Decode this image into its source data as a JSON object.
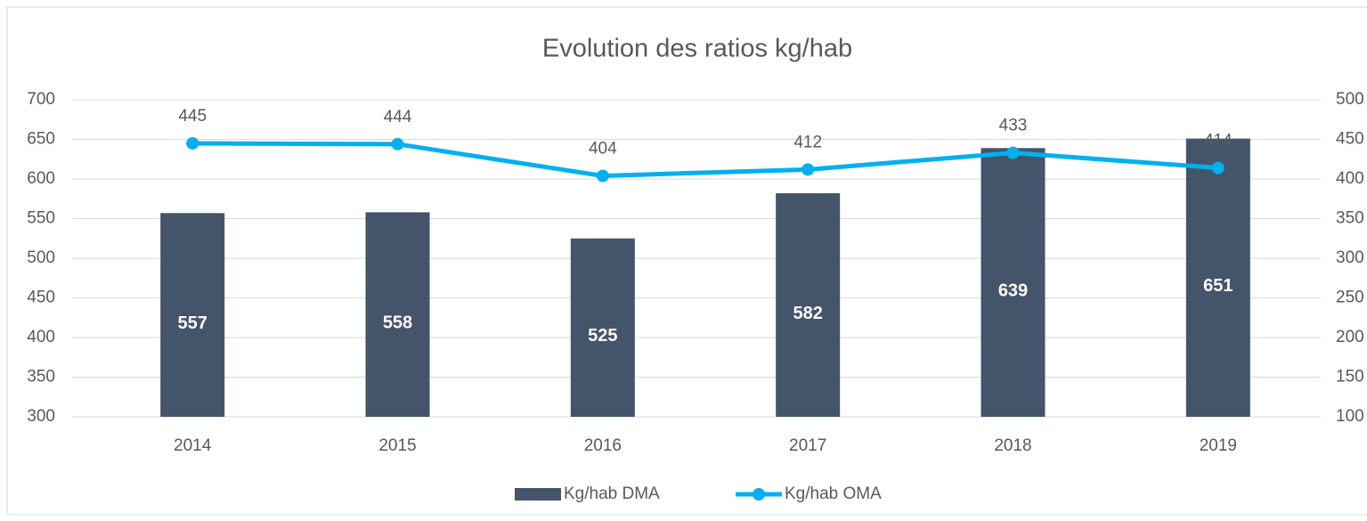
{
  "chart_data": {
    "type": "bar",
    "title": "Evolution des ratios kg/hab",
    "categories": [
      "2014",
      "2015",
      "2016",
      "2017",
      "2018",
      "2019"
    ],
    "series": [
      {
        "name": "Kg/hab DMA",
        "type": "bar",
        "color": "#44546a",
        "values": [
          557,
          558,
          525,
          582,
          639,
          651
        ]
      },
      {
        "name": "Kg/hab OMA",
        "type": "line",
        "axis": "y2",
        "color": "#00b0f0",
        "values": [
          445,
          444,
          404,
          412,
          433,
          414
        ]
      }
    ],
    "ylim": [
      300,
      700
    ],
    "yticks": [
      300,
      350,
      400,
      450,
      500,
      550,
      600,
      650,
      700
    ],
    "y2lim": [
      100,
      500
    ],
    "y2ticks": [
      100,
      150,
      200,
      250,
      300,
      350,
      400,
      450,
      500
    ],
    "grid": true,
    "legend": "bottom"
  }
}
